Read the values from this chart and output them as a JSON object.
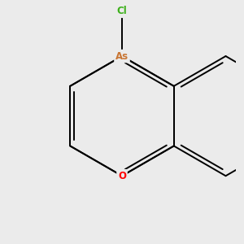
{
  "bg_color": "#ebebeb",
  "bond_color": "#000000",
  "As_color": "#c87533",
  "Cl_color": "#3cb01a",
  "O_color": "#ff0000",
  "bond_width": 1.4,
  "figsize": [
    3.0,
    3.0
  ],
  "dpi": 100,
  "xlim": [
    -1.9,
    1.9
  ],
  "ylim": [
    -2.1,
    1.9
  ]
}
